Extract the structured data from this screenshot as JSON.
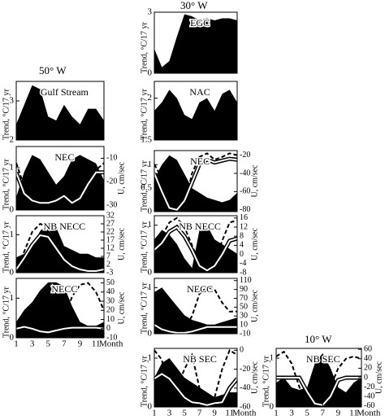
{
  "headings": [
    "50° W",
    "30° W",
    "10° W"
  ],
  "chart_data": [
    {
      "type": "area",
      "title": "Gulf Stream",
      "ylabel": "Trend, °C/17 yr",
      "x": [
        1,
        2,
        3,
        4,
        5,
        6,
        7,
        8,
        9,
        10,
        11,
        12
      ],
      "xlim": [
        1,
        12
      ],
      "ylim": [
        2,
        3.5
      ],
      "yticks": [
        2,
        3
      ],
      "series": [
        {
          "color": "#000000",
          "style": "fill",
          "values": [
            2.4,
            2.9,
            3.4,
            3.3,
            2.6,
            2.5,
            2.9,
            2.6,
            2.4,
            2.8,
            2.8,
            2.5
          ]
        }
      ]
    },
    {
      "type": "area",
      "title": "NEC",
      "ylabel": "Trend, °C/17 yr",
      "y2label": "U, cm/sec",
      "x": [
        1,
        2,
        3,
        4,
        5,
        6,
        7,
        8,
        9,
        10,
        11,
        12
      ],
      "xlim": [
        1,
        12
      ],
      "ylim": [
        0,
        1.5
      ],
      "yticks": [
        0,
        1
      ],
      "y2lim": [
        -32,
        -5
      ],
      "y2ticks": [
        -30,
        -20,
        -10
      ],
      "series": [
        {
          "color": "#000000",
          "style": "fill",
          "values": [
            0.3,
            0.9,
            1.3,
            1.2,
            0.9,
            0.6,
            0.8,
            1.2,
            1.3,
            1.2,
            1.1,
            0.7
          ]
        },
        {
          "color": "#000000",
          "style": "dash",
          "axis": "y2",
          "values": [
            -12,
            -22,
            -30,
            -30,
            -30,
            -30,
            -27,
            -30,
            -28,
            -22,
            -15,
            -12
          ]
        },
        {
          "color": "#ffffff",
          "style": "double",
          "axis": "y2",
          "values": [
            -16,
            -25,
            -28,
            -29,
            -29,
            -28,
            -26,
            -29,
            -27,
            -21,
            -16,
            -16
          ]
        }
      ]
    },
    {
      "type": "area",
      "title": "NB NECC",
      "ylabel": "Trend, °C/17 yr",
      "y2label": "U, cm/sec",
      "x": [
        1,
        2,
        3,
        4,
        5,
        6,
        7,
        8,
        9,
        10,
        11,
        12
      ],
      "xlim": [
        1,
        12
      ],
      "ylim": [
        0,
        1.5
      ],
      "yticks": [
        0,
        1
      ],
      "y2lim": [
        -3,
        32
      ],
      "y2ticks": [
        -3,
        2,
        7,
        12,
        17,
        22,
        27,
        32
      ],
      "series": [
        {
          "color": "#000000",
          "style": "fill",
          "values": [
            0.4,
            0.5,
            0.7,
            1.1,
            1.3,
            1.2,
            0.7,
            0.6,
            0.5,
            0.5,
            0.4,
            0.4
          ]
        },
        {
          "color": "#000000",
          "style": "dash",
          "axis": "y2",
          "values": [
            -2,
            10,
            22,
            27,
            25,
            17,
            7,
            2,
            0,
            -1,
            -2,
            -2
          ]
        },
        {
          "color": "#ffffff",
          "style": "double",
          "axis": "y2",
          "values": [
            -1,
            6,
            14,
            20,
            19,
            12,
            5,
            1,
            -1,
            -2,
            -2,
            -1
          ]
        }
      ]
    },
    {
      "type": "area",
      "title": "NECC",
      "ylabel": "Trend, °C/17 yr",
      "y2label": "U, cm/sec",
      "xlabel": "Month",
      "x": [
        1,
        2,
        3,
        4,
        5,
        6,
        7,
        8,
        9,
        10,
        11,
        12
      ],
      "xlim": [
        1,
        12
      ],
      "xticks": [
        1,
        3,
        5,
        7,
        9,
        11
      ],
      "ylim": [
        0,
        1.5
      ],
      "yticks": [
        0,
        1
      ],
      "y2lim": [
        -10,
        55
      ],
      "y2ticks": [
        -10,
        0,
        10,
        20,
        30,
        40,
        50
      ],
      "series": [
        {
          "color": "#000000",
          "style": "fill",
          "values": [
            0.4,
            0.7,
            0.9,
            1.2,
            1.4,
            1.4,
            1.3,
            0.8,
            0.4,
            0.3,
            0.3,
            0.4
          ]
        },
        {
          "color": "#000000",
          "style": "dash",
          "axis": "y2",
          "values": [
            2,
            5,
            2,
            -5,
            -7,
            -3,
            10,
            35,
            48,
            50,
            40,
            20
          ]
        },
        {
          "color": "#ffffff",
          "style": "double",
          "axis": "y2",
          "values": [
            0,
            2,
            0,
            -3,
            -4,
            -2,
            0,
            1,
            1,
            1,
            1,
            0
          ]
        }
      ]
    },
    {
      "type": "area",
      "title": "EGC",
      "ylabel": "Trend, °C/17 yr",
      "x": [
        1,
        2,
        3,
        4,
        5,
        6,
        7,
        8,
        9,
        10,
        11,
        12
      ],
      "xlim": [
        1,
        12
      ],
      "ylim": [
        0,
        3
      ],
      "yticks": [
        0,
        3
      ],
      "series": [
        {
          "color": "#000000",
          "style": "fill",
          "values": [
            1.2,
            0.3,
            0.6,
            1.8,
            2.9,
            2.8,
            2.6,
            2.7,
            2.6,
            2.7,
            2.7,
            2.6
          ]
        }
      ]
    },
    {
      "type": "area",
      "title": "NAC",
      "ylabel": "Trend, °C/17 yr",
      "x": [
        1,
        2,
        3,
        4,
        5,
        6,
        7,
        8,
        9,
        10,
        11,
        12
      ],
      "xlim": [
        1,
        12
      ],
      "ylim": [
        1.5,
        2.2
      ],
      "yticks": [
        1.5,
        2
      ],
      "series": [
        {
          "color": "#000000",
          "style": "fill",
          "values": [
            1.85,
            1.95,
            2.1,
            2.0,
            1.8,
            1.75,
            1.95,
            2.0,
            1.85,
            2.05,
            2.1,
            1.95
          ]
        }
      ]
    },
    {
      "type": "area",
      "title": "NEC",
      "ylabel": "Trend, °C/17 yr",
      "y2label": "U, cm/sec",
      "x": [
        1,
        2,
        3,
        4,
        5,
        6,
        7,
        8,
        9,
        10,
        11,
        12
      ],
      "xlim": [
        1,
        12
      ],
      "ylim": [
        0,
        1.3
      ],
      "yticks": [
        0,
        0.5,
        1
      ],
      "y2lim": [
        -82,
        -15
      ],
      "y2ticks": [
        -80,
        -60,
        -40,
        -20
      ],
      "series": [
        {
          "color": "#000000",
          "style": "fill",
          "values": [
            0.7,
            1.0,
            1.2,
            1.1,
            0.8,
            0.5,
            0.4,
            0.3,
            0.25,
            0.2,
            0.25,
            0.4
          ]
        },
        {
          "color": "#000000",
          "style": "dash",
          "axis": "y2",
          "values": [
            -30,
            -45,
            -70,
            -80,
            -75,
            -40,
            -22,
            -18,
            -25,
            -22,
            -18,
            -20
          ]
        },
        {
          "color": "#ffffff",
          "style": "double",
          "axis": "y2",
          "values": [
            -40,
            -60,
            -78,
            -80,
            -70,
            -50,
            -30,
            -25,
            -28,
            -26,
            -24,
            -25
          ]
        }
      ]
    },
    {
      "type": "area",
      "title": "NB NECC",
      "ylabel": "Trend, °C/17 yr",
      "y2label": "U, cm/sec",
      "x": [
        1,
        2,
        3,
        4,
        5,
        6,
        7,
        8,
        9,
        10,
        11,
        12
      ],
      "xlim": [
        1,
        12
      ],
      "ylim": [
        0,
        1.2
      ],
      "yticks": [
        0,
        1
      ],
      "y2lim": [
        -8,
        17
      ],
      "y2ticks": [
        -8,
        -4,
        0,
        4,
        8,
        12,
        16
      ],
      "series": [
        {
          "color": "#000000",
          "style": "fill",
          "values": [
            0.7,
            0.9,
            0.8,
            0.6,
            0.3,
            0.1,
            0.9,
            1.0,
            0.7,
            0.6,
            0.5,
            0.4
          ]
        },
        {
          "color": "#000000",
          "style": "dash",
          "axis": "y2",
          "values": [
            4,
            8,
            14,
            16,
            12,
            4,
            -4,
            -6,
            -4,
            6,
            14,
            15
          ]
        },
        {
          "color": "#ffffff",
          "style": "double",
          "axis": "y2",
          "values": [
            2,
            5,
            10,
            12,
            8,
            2,
            -5,
            -7,
            -5,
            0,
            6,
            7
          ]
        }
      ]
    },
    {
      "type": "area",
      "title": "NECC",
      "ylabel": "Trend, °C/17 yr",
      "y2label": "U, cm/sec",
      "x": [
        1,
        2,
        3,
        4,
        5,
        6,
        7,
        8,
        9,
        10,
        11,
        12
      ],
      "xlim": [
        1,
        12
      ],
      "ylim": [
        0,
        1.2
      ],
      "yticks": [
        0,
        1
      ],
      "y2lim": [
        -10,
        115
      ],
      "y2ticks": [
        -10,
        10,
        30,
        50,
        70,
        90,
        110
      ],
      "series": [
        {
          "color": "#000000",
          "style": "fill",
          "values": [
            0.9,
            1.0,
            0.8,
            0.6,
            0.4,
            0.3,
            0.25,
            0.2,
            0.2,
            0.25,
            0.3,
            0.35
          ]
        },
        {
          "color": "#000000",
          "style": "dash",
          "axis": "y2",
          "values": [
            20,
            40,
            30,
            10,
            0,
            30,
            80,
            95,
            90,
            60,
            40,
            40
          ]
        },
        {
          "color": "#ffffff",
          "style": "double",
          "axis": "y2",
          "values": [
            10,
            0,
            -5,
            -8,
            -8,
            -5,
            0,
            5,
            5,
            5,
            5,
            5
          ]
        }
      ]
    },
    {
      "type": "area",
      "title": "NB SEC",
      "ylabel": "Trend, °C/17 yr",
      "y2label": "U, cm/sec",
      "xlabel": "Month",
      "x": [
        1,
        2,
        3,
        4,
        5,
        6,
        7,
        8,
        9,
        10,
        11,
        12
      ],
      "xlim": [
        1,
        12
      ],
      "xticks": [
        1,
        3,
        5,
        7,
        9,
        11
      ],
      "ylim": [
        0,
        1.2
      ],
      "yticks": [
        0,
        1
      ],
      "y2lim": [
        -60,
        2
      ],
      "y2ticks": [
        -60,
        -40,
        -20,
        0
      ],
      "series": [
        {
          "color": "#000000",
          "style": "fill",
          "values": [
            0.6,
            0.9,
            1.0,
            0.8,
            0.6,
            0.5,
            0.4,
            0.3,
            0.2,
            0.25,
            0.3,
            0.3
          ]
        },
        {
          "color": "#000000",
          "style": "dash",
          "axis": "y2",
          "values": [
            0,
            -10,
            -50,
            -40,
            -20,
            -5,
            -40,
            -58,
            -50,
            -20,
            0,
            -5
          ]
        },
        {
          "color": "#ffffff",
          "style": "double",
          "axis": "y2",
          "values": [
            -30,
            -25,
            -30,
            -40,
            -50,
            -55,
            -56,
            -58,
            -56,
            -55,
            -40,
            -30
          ]
        }
      ]
    },
    {
      "type": "area",
      "title": "NB SEC",
      "ylabel": "Trend, °C/17 yr",
      "y2label": "U, cm/sec",
      "xlabel": "Month",
      "x": [
        1,
        2,
        3,
        4,
        5,
        6,
        7,
        8,
        9,
        10,
        11,
        12
      ],
      "xlim": [
        1,
        12
      ],
      "xticks": [
        1,
        3,
        5,
        7,
        9,
        11
      ],
      "ylim": [
        0,
        1.2
      ],
      "yticks": [
        0,
        1
      ],
      "y2lim": [
        -62,
        62
      ],
      "y2ticks": [
        -60,
        -40,
        -20,
        0,
        20,
        40,
        60
      ],
      "series": [
        {
          "color": "#000000",
          "style": "fill",
          "values": [
            0.5,
            0.6,
            0.4,
            0.35,
            0.4,
            0.9,
            1.1,
            0.8,
            0.4,
            0.3,
            0.5,
            0.6
          ]
        },
        {
          "color": "#000000",
          "style": "dash",
          "axis": "y2",
          "values": [
            45,
            55,
            30,
            -20,
            -55,
            -60,
            -55,
            -20,
            20,
            40,
            45,
            40
          ]
        },
        {
          "color": "#ffffff",
          "style": "double",
          "axis": "y2",
          "values": [
            0,
            0,
            0,
            0,
            -30,
            -55,
            -58,
            -40,
            -5,
            0,
            0,
            0
          ]
        }
      ]
    }
  ]
}
